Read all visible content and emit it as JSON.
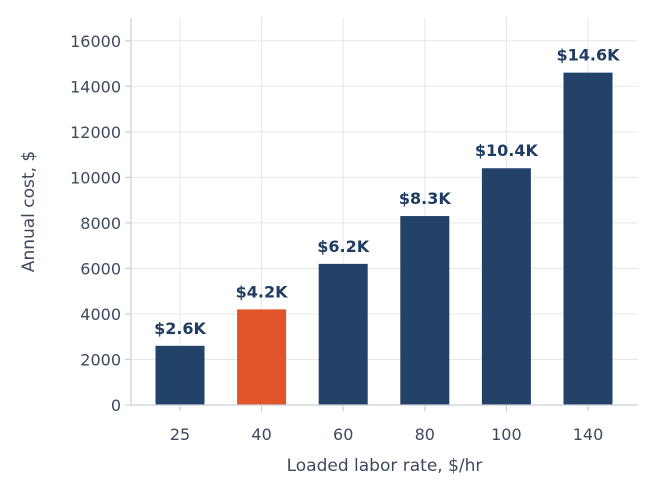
{
  "chart_data": {
    "type": "bar",
    "title": "",
    "xlabel": "Loaded labor rate, $/hr",
    "ylabel": "Annual cost, $",
    "categories": [
      "25",
      "40",
      "60",
      "80",
      "100",
      "140"
    ],
    "values": [
      2600,
      4200,
      6200,
      8300,
      10400,
      14600
    ],
    "data_labels": [
      "$2.6K",
      "$4.2K",
      "$6.2K",
      "$8.3K",
      "$10.4K",
      "$14.6K"
    ],
    "highlight_index": 1,
    "ylim": [
      0,
      17000
    ],
    "yticks": [
      0,
      2000,
      4000,
      6000,
      8000,
      10000,
      12000,
      14000,
      16000
    ],
    "grid": true,
    "colors": {
      "bar": "#22426a",
      "highlight": "#e0542a",
      "label": "#1f3d63"
    }
  }
}
